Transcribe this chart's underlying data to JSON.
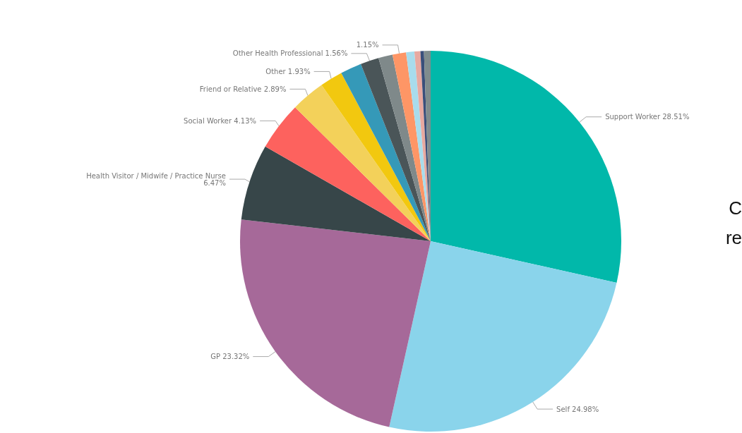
{
  "chart_data": {
    "type": "pie",
    "categories": [
      "Support Worker",
      "Self",
      "GP",
      "Health Visitor / Midwife / Practice Nurse",
      "Social Worker",
      "Friend or Relative",
      "Other",
      null,
      "Other Health Professional",
      null,
      null,
      null,
      null,
      null,
      null
    ],
    "values": [
      28.51,
      24.98,
      23.32,
      6.47,
      4.13,
      2.89,
      1.93,
      1.8,
      1.56,
      1.2,
      1.15,
      0.7,
      0.5,
      0.3,
      0.56
    ],
    "value_labels": [
      "28.51%",
      "24.98%",
      "23.32%",
      "6.47%",
      "4.13%",
      "2.89%",
      "1.93%",
      null,
      "1.56%",
      null,
      "1.15%",
      null,
      null,
      null,
      null
    ],
    "colors": [
      "#01b8aa",
      "#8ad4eb",
      "#a66999",
      "#374649",
      "#fd625e",
      "#f3d15a",
      "#f2c80f",
      "#3599b8",
      "#4a5558",
      "#7f898a",
      "#fe9666",
      "#a8dcec",
      "#e8a9a0",
      "#3a4f7a",
      "#7f8c8d"
    ],
    "annotations": [
      "C",
      "re"
    ],
    "legend": false
  }
}
